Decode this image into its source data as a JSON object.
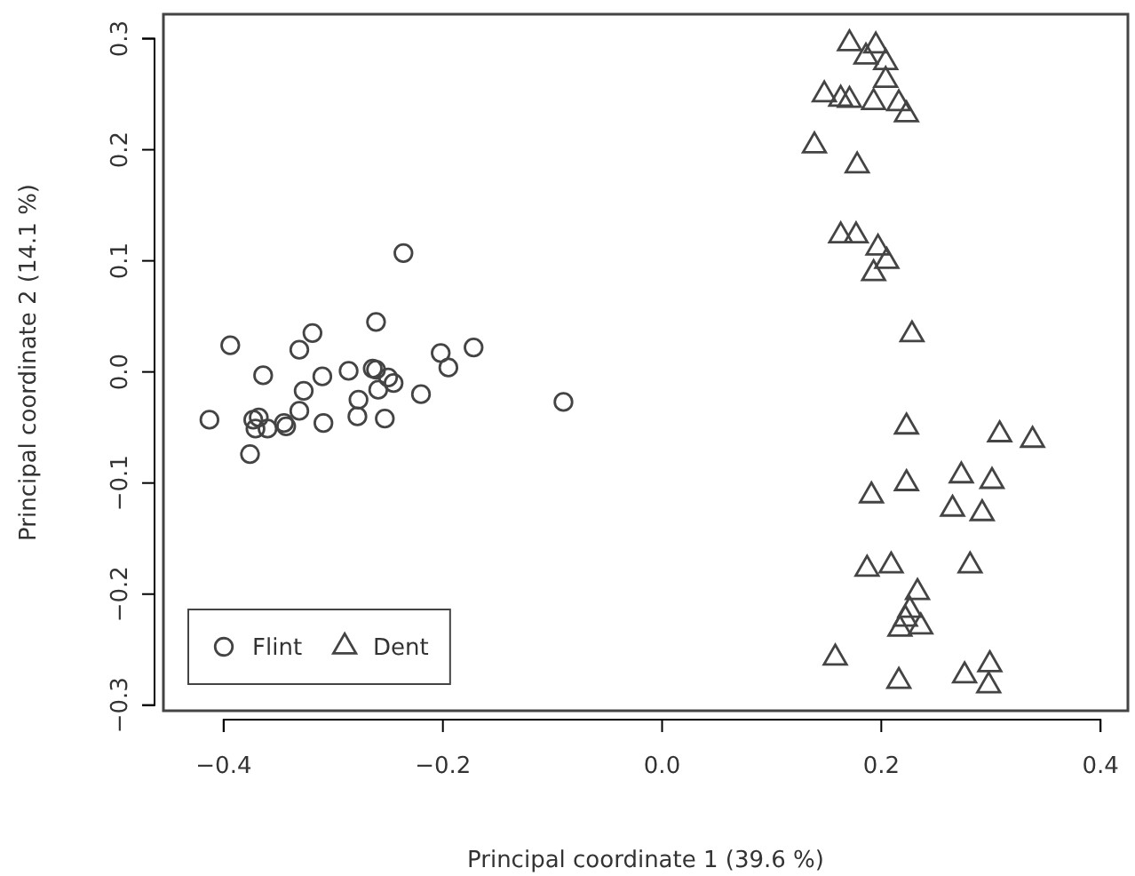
{
  "chart_data": {
    "type": "scatter",
    "xlabel": "Principal coordinate 1 (39.6 %)",
    "ylabel": "Principal coordinate 2 (14.1 %)",
    "xlim": [
      -0.455,
      0.425
    ],
    "ylim": [
      -0.305,
      0.322
    ],
    "xticks": [
      -0.4,
      -0.2,
      {
        "value": 0,
        "label": "0.0"
      },
      0.2,
      0.4
    ],
    "yticks": [
      -0.3,
      -0.2,
      -0.1,
      {
        "value": 0,
        "label": "0.0"
      },
      0.1,
      0.2,
      0.3
    ],
    "grid": false,
    "legend": "bottom left",
    "series": [
      {
        "name": "Flint",
        "color": "#444444",
        "marker": "circle",
        "x": [
          -0.394,
          -0.319,
          -0.331,
          -0.236,
          -0.261,
          -0.364,
          -0.31,
          -0.286,
          -0.264,
          -0.261,
          -0.25,
          -0.245,
          -0.259,
          -0.327,
          -0.277,
          -0.22,
          -0.202,
          -0.195,
          -0.172,
          -0.09,
          -0.331,
          -0.413,
          -0.368,
          -0.371,
          -0.36,
          -0.345,
          -0.343,
          -0.309,
          -0.278,
          -0.253,
          -0.376,
          -0.373
        ],
        "values": [
          0.024,
          0.035,
          0.02,
          0.107,
          0.045,
          -0.003,
          -0.004,
          0.001,
          0.003,
          0.002,
          -0.005,
          -0.01,
          -0.016,
          -0.017,
          -0.025,
          -0.02,
          0.017,
          0.004,
          0.022,
          -0.027,
          -0.035,
          -0.043,
          -0.041,
          -0.051,
          -0.051,
          -0.046,
          -0.049,
          -0.046,
          -0.04,
          -0.042,
          -0.074,
          -0.043
        ]
      },
      {
        "name": "Dent",
        "color": "#444444",
        "marker": "triangle",
        "x": [
          0.171,
          0.195,
          0.186,
          0.204,
          0.204,
          0.148,
          0.163,
          0.171,
          0.193,
          0.216,
          0.223,
          0.139,
          0.178,
          0.163,
          0.177,
          0.197,
          0.205,
          0.193,
          0.228,
          0.223,
          0.308,
          0.338,
          0.191,
          0.223,
          0.273,
          0.301,
          0.265,
          0.292,
          0.187,
          0.209,
          0.281,
          0.233,
          0.226,
          0.222,
          0.236,
          0.217,
          0.158,
          0.216,
          0.276,
          0.299,
          0.298
        ],
        "values": [
          0.298,
          0.296,
          0.286,
          0.281,
          0.265,
          0.252,
          0.248,
          0.247,
          0.245,
          0.244,
          0.234,
          0.206,
          0.188,
          0.125,
          0.125,
          0.114,
          0.102,
          0.091,
          0.036,
          -0.047,
          -0.054,
          -0.059,
          -0.109,
          -0.098,
          -0.091,
          -0.096,
          -0.121,
          -0.125,
          -0.175,
          -0.172,
          -0.172,
          -0.196,
          -0.212,
          -0.22,
          -0.227,
          -0.229,
          -0.255,
          -0.276,
          -0.271,
          -0.261,
          -0.28
        ]
      }
    ]
  }
}
